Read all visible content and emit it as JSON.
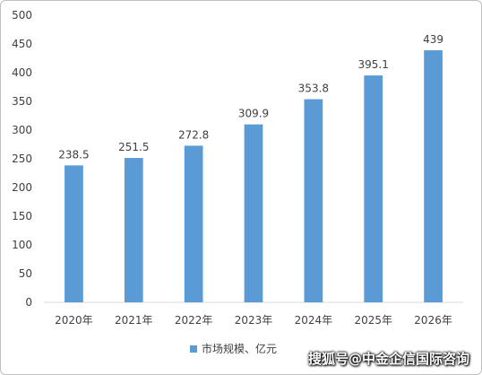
{
  "chart_data": {
    "type": "bar",
    "categories": [
      "2020年",
      "2021年",
      "2022年",
      "2023年",
      "2024年",
      "2025年",
      "2026年"
    ],
    "series": [
      {
        "name": "市场规模、亿元",
        "values": [
          238.5,
          251.5,
          272.8,
          309.9,
          353.8,
          395.1,
          439
        ],
        "labels": [
          "238.5",
          "251.5",
          "272.8",
          "309.9",
          "353.8",
          "395.1",
          "439"
        ],
        "color": "#5b9bd5"
      }
    ],
    "ylim": [
      0,
      500
    ],
    "yticks": [
      0,
      50,
      100,
      150,
      200,
      250,
      300,
      350,
      400,
      450,
      500
    ],
    "grid": false,
    "legend_position": "bottom-center"
  },
  "watermark": "搜狐号@中金企信国际咨询"
}
